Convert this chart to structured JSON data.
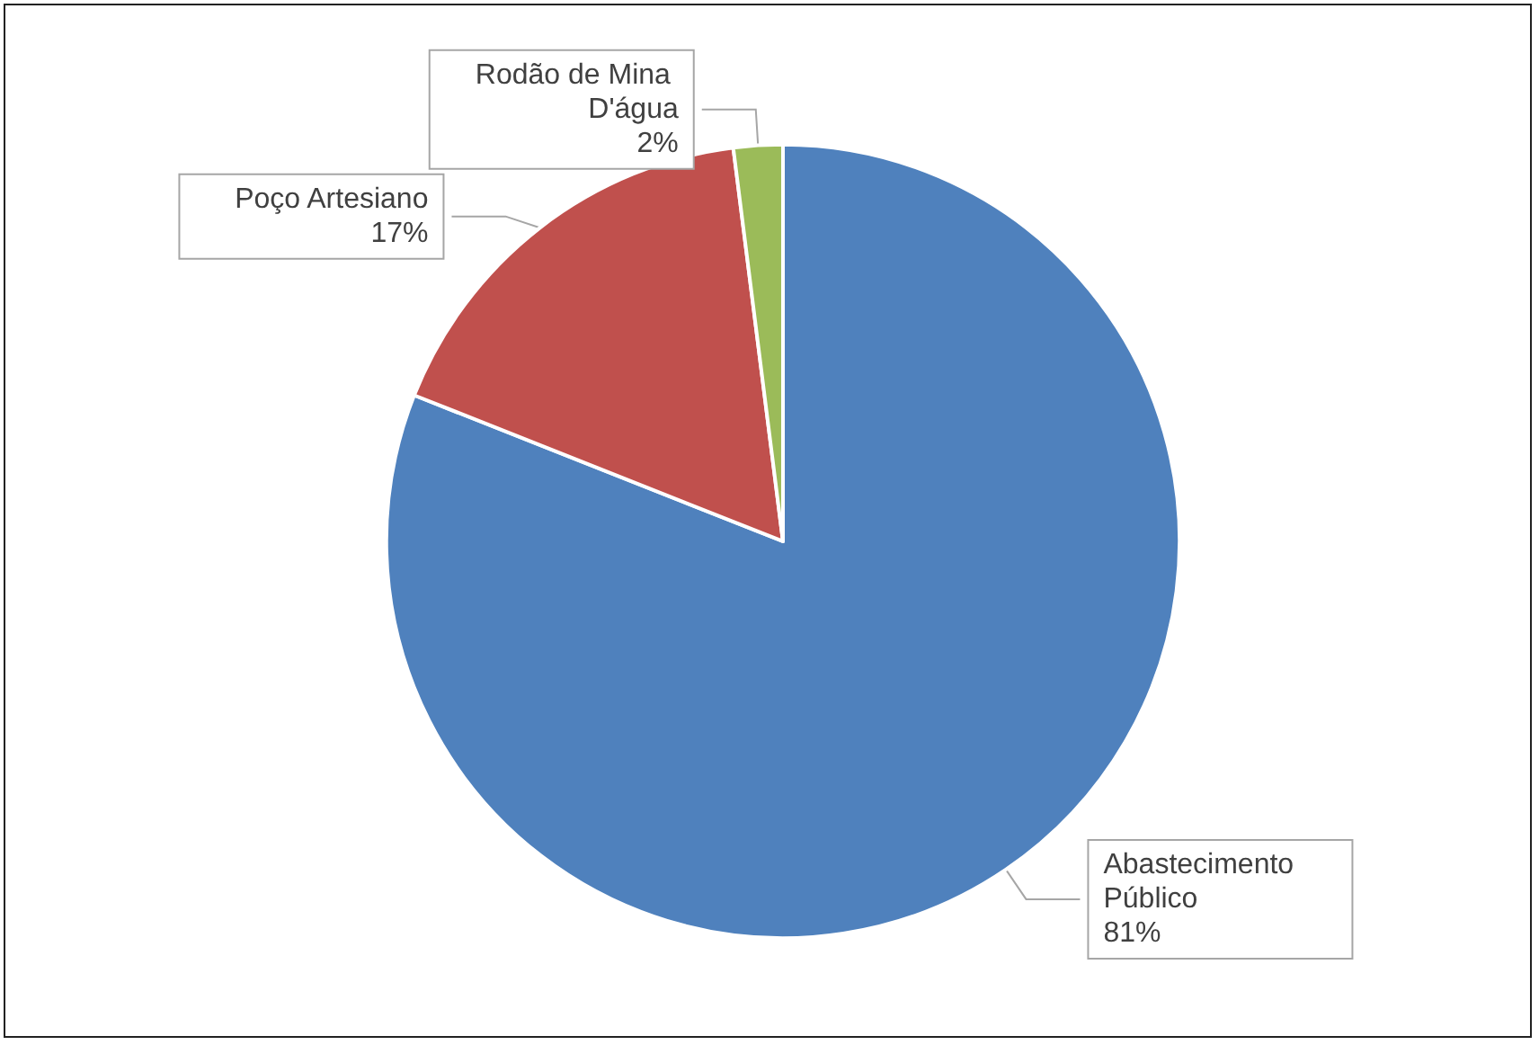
{
  "chart_data": {
    "type": "pie",
    "categories": [
      "Abastecimento Público",
      "Poço Artesiano",
      "Rodão de Mina D'água"
    ],
    "values": [
      81,
      17,
      2
    ],
    "value_labels": [
      "81%",
      "17%",
      "2%"
    ],
    "colors": [
      "#4f81bd",
      "#c0504d",
      "#9bbb59"
    ],
    "legend": false
  }
}
